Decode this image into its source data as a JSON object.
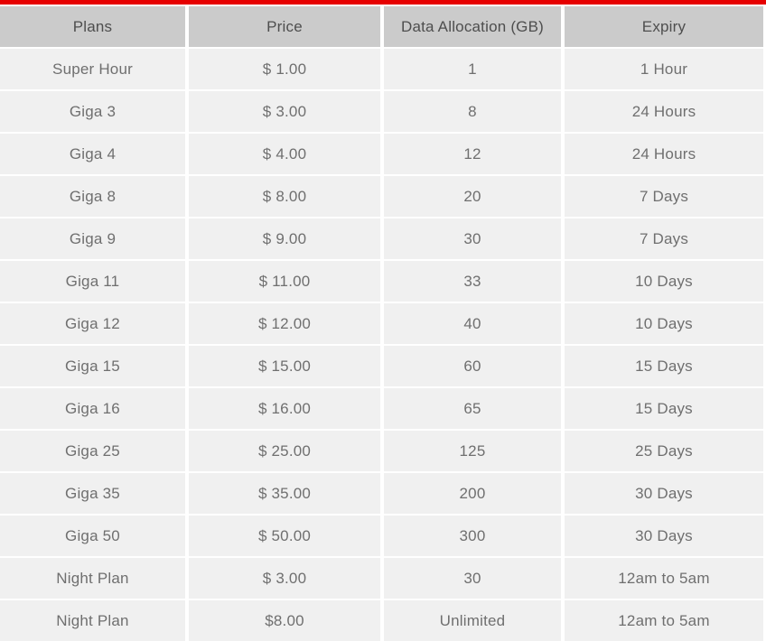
{
  "colors": {
    "accent": "#e60000",
    "header_bg": "#cbcbcb",
    "header_text": "#4e4e4e",
    "row_bg": "#f0f0f0",
    "row_text": "#6f6f6f"
  },
  "table": {
    "columns": [
      "Plans",
      "Price",
      "Data Allocation (GB)",
      "Expiry"
    ],
    "rows": [
      {
        "plan": "Super Hour",
        "price": "$ 1.00",
        "data_gb": "1",
        "expiry": "1 Hour"
      },
      {
        "plan": "Giga 3",
        "price": "$ 3.00",
        "data_gb": "8",
        "expiry": "24 Hours"
      },
      {
        "plan": "Giga 4",
        "price": "$ 4.00",
        "data_gb": "12",
        "expiry": "24 Hours"
      },
      {
        "plan": "Giga 8",
        "price": "$ 8.00",
        "data_gb": "20",
        "expiry": "7 Days"
      },
      {
        "plan": "Giga 9",
        "price": "$ 9.00",
        "data_gb": "30",
        "expiry": "7 Days"
      },
      {
        "plan": "Giga 11",
        "price": "$ 11.00",
        "data_gb": "33",
        "expiry": "10 Days"
      },
      {
        "plan": "Giga 12",
        "price": "$ 12.00",
        "data_gb": "40",
        "expiry": "10 Days"
      },
      {
        "plan": "Giga 15",
        "price": "$ 15.00",
        "data_gb": "60",
        "expiry": "15 Days"
      },
      {
        "plan": "Giga 16",
        "price": "$ 16.00",
        "data_gb": "65",
        "expiry": "15 Days"
      },
      {
        "plan": "Giga 25",
        "price": "$ 25.00",
        "data_gb": "125",
        "expiry": "25 Days"
      },
      {
        "plan": "Giga 35",
        "price": "$ 35.00",
        "data_gb": "200",
        "expiry": "30 Days"
      },
      {
        "plan": "Giga 50",
        "price": "$ 50.00",
        "data_gb": "300",
        "expiry": "30 Days"
      },
      {
        "plan": "Night Plan",
        "price": "$ 3.00",
        "data_gb": "30",
        "expiry": "12am to 5am"
      },
      {
        "plan": "Night Plan",
        "price": "$8.00",
        "data_gb": "Unlimited",
        "expiry": "12am to 5am"
      }
    ]
  }
}
